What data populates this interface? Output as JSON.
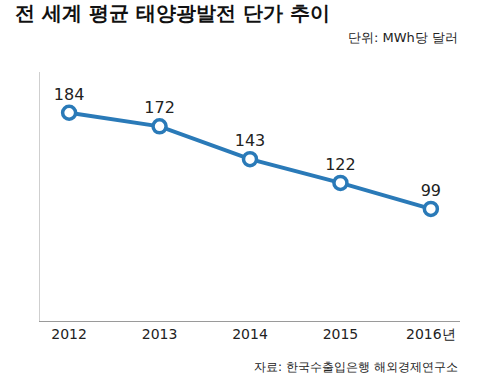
{
  "chart_data": {
    "type": "line",
    "title": "전 세계 평균 태양광발전 단가 추이",
    "subtitle": "단위: MWh당 달러",
    "source": "자료: 한국수출입은행 해외경제연구소",
    "categories": [
      "2012",
      "2013",
      "2014",
      "2015",
      "2016년"
    ],
    "values": [
      184,
      172,
      143,
      122,
      99
    ],
    "color": "#2a7ab8",
    "marker": "circle",
    "ylim": [
      0,
      220
    ],
    "yticks": [],
    "tick_labels": "x",
    "grid": false,
    "data_labels": true
  }
}
